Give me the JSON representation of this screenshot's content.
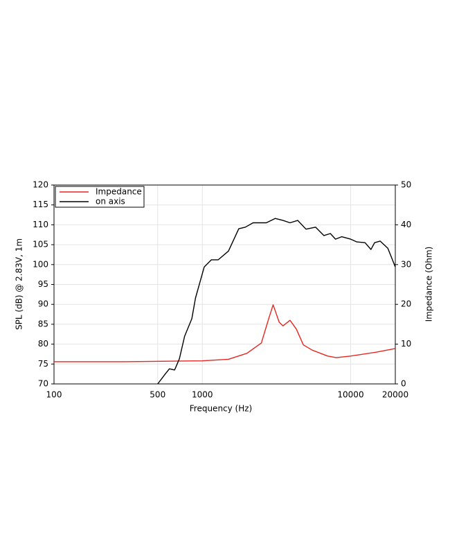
{
  "chart_data": {
    "type": "line",
    "xlabel": "Frequency (Hz)",
    "ylabel": "SPL (dB) @ 2.83V, 1m",
    "y2label": "Impedance (Ohm)",
    "xscale": "log",
    "xlim": [
      100,
      20000
    ],
    "xticks": [
      100,
      500,
      1000,
      10000,
      20000
    ],
    "ylim": [
      70,
      120
    ],
    "yticks": [
      70,
      75,
      80,
      85,
      90,
      95,
      100,
      105,
      110,
      115,
      120
    ],
    "y2lim": [
      0,
      50
    ],
    "y2ticks": [
      0,
      10,
      20,
      30,
      40,
      50
    ],
    "grid": true,
    "legend": "upper left",
    "series": [
      {
        "name": "Impedance",
        "color": "#e8241f",
        "axis": "y2",
        "x": [
          100,
          300,
          1000,
          1500,
          2000,
          2500,
          2800,
          3000,
          3300,
          3500,
          3900,
          4300,
          4800,
          5500,
          7000,
          8000,
          10000,
          15000,
          20000
        ],
        "values": [
          5.6,
          5.6,
          5.8,
          6.2,
          7.7,
          10.3,
          16.4,
          19.9,
          15.5,
          14.6,
          16,
          13.8,
          9.8,
          8.5,
          7,
          6.6,
          7,
          8,
          8.9
        ]
      },
      {
        "name": "on axis",
        "color": "#000000",
        "axis": "y",
        "x": [
          500,
          560,
          600,
          650,
          700,
          760,
          850,
          900,
          1030,
          1150,
          1280,
          1500,
          1760,
          1950,
          2200,
          2700,
          3100,
          3500,
          3900,
          4400,
          5000,
          5800,
          6600,
          7300,
          7900,
          8700,
          10000,
          11000,
          12500,
          13700,
          14500,
          15800,
          17800,
          20000
        ],
        "values": [
          70,
          72.4,
          73.8,
          73.5,
          76.3,
          82,
          86.4,
          91.6,
          99.4,
          101.2,
          101.2,
          103.4,
          109,
          109.4,
          110.5,
          110.5,
          111.6,
          111.1,
          110.5,
          111.1,
          108.9,
          109.4,
          107.3,
          107.8,
          106.4,
          107,
          106.4,
          105.7,
          105.5,
          103.8,
          105.5,
          105.9,
          104.1,
          99.4
        ]
      }
    ]
  }
}
